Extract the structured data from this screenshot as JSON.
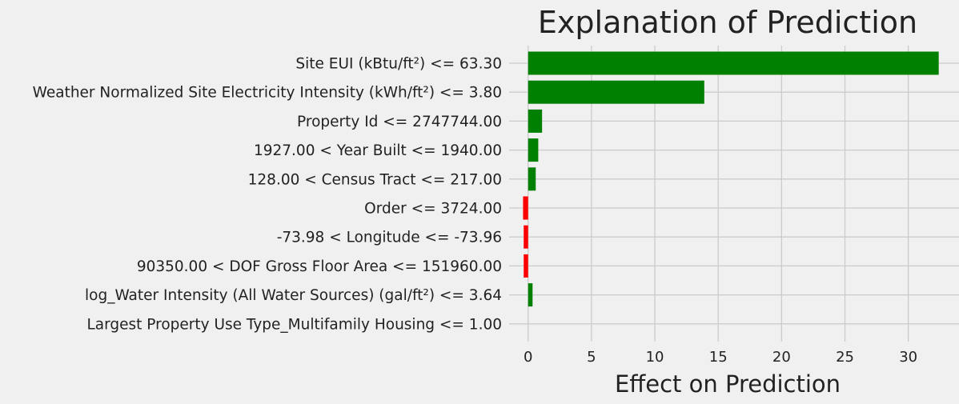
{
  "chart_data": {
    "type": "bar",
    "orientation": "horizontal",
    "title": "Explanation of Prediction",
    "xlabel": "Effect on Prediction",
    "ylabel": "",
    "categories": [
      "Site EUI (kBtu/ft²) <= 63.30",
      "Weather Normalized Site Electricity Intensity (kWh/ft²) <= 3.80",
      "Property Id <= 2747744.00",
      "1927.00 < Year Built <= 1940.00",
      "128.00 < Census Tract <= 217.00",
      "Order <= 3724.00",
      "-73.98 < Longitude <= -73.96",
      "90350.00 < DOF Gross Floor Area <= 151960.00",
      "log_Water Intensity (All Water Sources) (gal/ft²) <= 3.64",
      "Largest Property Use Type_Multifamily Housing <= 1.00"
    ],
    "values": [
      32.4,
      13.9,
      1.1,
      0.8,
      0.6,
      -0.4,
      -0.35,
      -0.35,
      0.35,
      0.0
    ],
    "xlim": [
      -1.5,
      34
    ],
    "xticks": [
      0,
      5,
      10,
      15,
      20,
      25,
      30
    ],
    "grid": true,
    "colors": {
      "positive": "#008000",
      "negative": "#ff0000",
      "background": "#f0f0f0",
      "grid": "#cbcbcb"
    }
  }
}
